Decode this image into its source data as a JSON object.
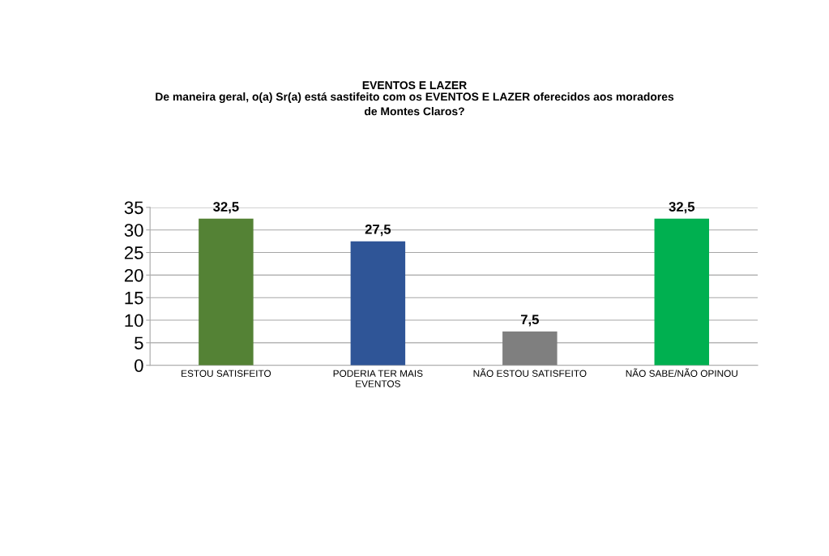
{
  "chart_data": {
    "type": "bar",
    "title": "EVENTOS E LAZER",
    "subtitle": "De maneira geral, o(a) Sr(a) está sastifeito com os EVENTOS E LAZER oferecidos aos moradores\nde Montes Claros?",
    "categories": [
      "ESTOU SATISFEITO",
      "PODERIA TER MAIS\nEVENTOS",
      "NÃO ESTOU SATISFEITO",
      "NÃO SABE/NÃO OPINOU"
    ],
    "values": [
      32.5,
      27.5,
      7.5,
      32.5
    ],
    "value_labels": [
      "32,5",
      "27,5",
      "7,5",
      "32,5"
    ],
    "colors": [
      "#548235",
      "#2f5597",
      "#7f7f7f",
      "#00b050"
    ],
    "ylim": [
      0,
      35
    ],
    "yticks": [
      0,
      5,
      10,
      15,
      20,
      25,
      30,
      35
    ],
    "grid": "y"
  }
}
